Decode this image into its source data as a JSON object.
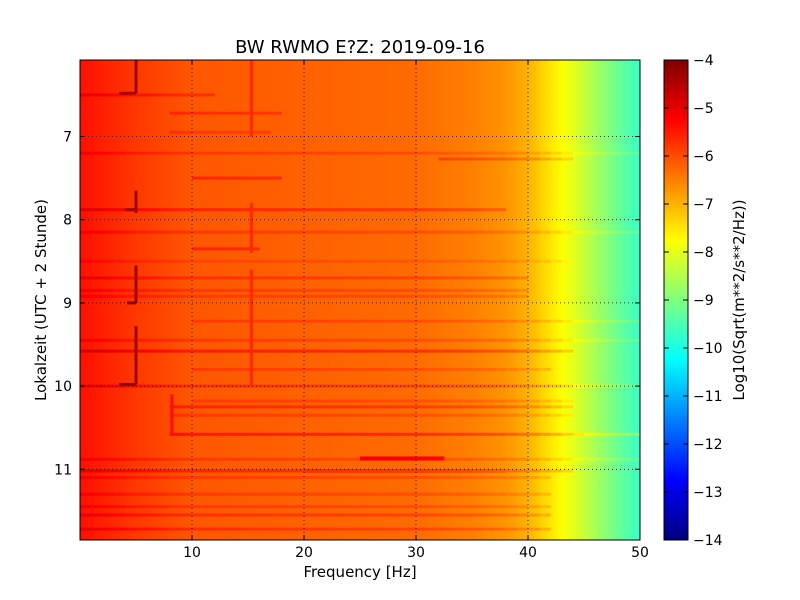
{
  "chart_data": {
    "type": "heatmap",
    "title": "BW RWMO E?Z: 2019-09-16",
    "xlabel": "Frequency [Hz]",
    "ylabel": "Lokalzeit (UTC + 2 Stunde)",
    "xlim": [
      0,
      50
    ],
    "ylim": [
      11.85,
      6.08
    ],
    "x_ticks": [
      10,
      20,
      30,
      40,
      50
    ],
    "y_ticks": [
      7,
      8,
      9,
      10,
      11
    ],
    "x_tick_labels": [
      "10",
      "20",
      "30",
      "40",
      "50"
    ],
    "y_tick_labels": [
      "7",
      "8",
      "9",
      "10",
      "11"
    ],
    "grid": true,
    "colormap": "jet",
    "colorbar": {
      "label": "Log10(Sqrt(m**2/s**2/Hz))",
      "vmin": -14,
      "vmax": -4,
      "ticks": [
        -4,
        -5,
        -6,
        -7,
        -8,
        -9,
        -10,
        -11,
        -12,
        -13,
        -14
      ],
      "tick_labels": [
        "−4",
        "−5",
        "−6",
        "−7",
        "−8",
        "−9",
        "−10",
        "−11",
        "−12",
        "−13",
        "−14"
      ]
    },
    "profile": {
      "frequency_hz": [
        0,
        5,
        10,
        20,
        30,
        35,
        38,
        40,
        42,
        44,
        46,
        48,
        50
      ],
      "level": [
        -5.4,
        -5.8,
        -6.1,
        -6.2,
        -6.3,
        -6.5,
        -6.7,
        -7.0,
        -7.5,
        -8.0,
        -8.6,
        -9.2,
        -9.7
      ]
    },
    "features": {
      "horizontal_lines": [
        {
          "time": 6.5,
          "f_start": 0,
          "f_end": 12,
          "delta": 0.4
        },
        {
          "time": 6.72,
          "f_start": 8,
          "f_end": 18,
          "delta": 0.4
        },
        {
          "time": 6.95,
          "f_start": 8,
          "f_end": 17,
          "delta": 0.3
        },
        {
          "time": 7.2,
          "f_start": 0,
          "f_end": 50,
          "delta": 0.3
        },
        {
          "time": 7.27,
          "f_start": 32,
          "f_end": 44,
          "delta": 0.5
        },
        {
          "time": 7.5,
          "f_start": 10,
          "f_end": 18,
          "delta": 0.5
        },
        {
          "time": 7.88,
          "f_start": 0,
          "f_end": 38,
          "delta": 0.5
        },
        {
          "time": 8.15,
          "f_start": 0,
          "f_end": 50,
          "delta": 0.3
        },
        {
          "time": 8.35,
          "f_start": 10,
          "f_end": 16,
          "delta": 0.5
        },
        {
          "time": 8.5,
          "f_start": 0,
          "f_end": 44,
          "delta": 0.2
        },
        {
          "time": 8.7,
          "f_start": 0,
          "f_end": 40,
          "delta": 0.4
        },
        {
          "time": 8.85,
          "f_start": 0,
          "f_end": 40,
          "delta": 0.3
        },
        {
          "time": 8.92,
          "f_start": 0,
          "f_end": 40,
          "delta": 0.3
        },
        {
          "time": 9.22,
          "f_start": 10,
          "f_end": 50,
          "delta": 0.3
        },
        {
          "time": 9.45,
          "f_start": 0,
          "f_end": 50,
          "delta": 0.3
        },
        {
          "time": 9.58,
          "f_start": 0,
          "f_end": 44,
          "delta": 0.6
        },
        {
          "time": 9.8,
          "f_start": 10,
          "f_end": 42,
          "delta": 0.3
        },
        {
          "time": 10.0,
          "f_start": 0,
          "f_end": 50,
          "delta": 0.4
        },
        {
          "time": 10.18,
          "f_start": 10,
          "f_end": 44,
          "delta": 0.3
        },
        {
          "time": 10.25,
          "f_start": 8,
          "f_end": 44,
          "delta": 0.5
        },
        {
          "time": 10.35,
          "f_start": 8,
          "f_end": 44,
          "delta": 0.3
        },
        {
          "time": 10.58,
          "f_start": 8,
          "f_end": 50,
          "delta": 0.6
        },
        {
          "time": 10.88,
          "f_start": 0,
          "f_end": 50,
          "delta": 0.3
        },
        {
          "time": 11.02,
          "f_start": 0,
          "f_end": 44,
          "delta": 0.5
        },
        {
          "time": 11.1,
          "f_start": 0,
          "f_end": 42,
          "delta": 0.3
        },
        {
          "time": 11.3,
          "f_start": 0,
          "f_end": 42,
          "delta": 0.3
        },
        {
          "time": 11.45,
          "f_start": 0,
          "f_end": 42,
          "delta": 0.3
        },
        {
          "time": 11.55,
          "f_start": 0,
          "f_end": 42,
          "delta": 0.4
        },
        {
          "time": 11.72,
          "f_start": 0,
          "f_end": 42,
          "delta": 0.4
        }
      ],
      "dark_segments": [
        {
          "time": 10.87,
          "f_start": 25,
          "f_end": 32.5,
          "delta": 1.1
        },
        {
          "time": 11.02,
          "f_start": 20,
          "f_end": 38,
          "delta": 0.5
        }
      ],
      "vertical_lines": [
        {
          "freq": 5.0,
          "t_start": 6.08,
          "t_end": 6.48,
          "delta": 1.5
        },
        {
          "freq": 5.0,
          "t_start": 7.65,
          "t_end": 7.92,
          "delta": 1.5
        },
        {
          "freq": 5.0,
          "t_start": 8.55,
          "t_end": 9.0,
          "delta": 1.5
        },
        {
          "freq": 5.0,
          "t_start": 9.28,
          "t_end": 9.98,
          "delta": 1.5
        },
        {
          "freq": 15.3,
          "t_start": 6.08,
          "t_end": 7.0,
          "delta": 0.5
        },
        {
          "freq": 15.3,
          "t_start": 7.8,
          "t_end": 8.4,
          "delta": 0.5
        },
        {
          "freq": 15.3,
          "t_start": 8.6,
          "t_end": 10.0,
          "delta": 0.5
        },
        {
          "freq": 8.2,
          "t_start": 10.1,
          "t_end": 10.6,
          "delta": 0.6
        }
      ],
      "brackets": [
        {
          "freq": 5.0,
          "time": 6.48,
          "f_start": 3.5,
          "f_end": 5.0,
          "delta": 1.5
        },
        {
          "freq": 5.0,
          "time": 7.88,
          "f_start": 4.0,
          "f_end": 5.0,
          "delta": 1.5
        },
        {
          "freq": 5.0,
          "time": 9.0,
          "f_start": 4.2,
          "f_end": 5.0,
          "delta": 1.5
        },
        {
          "freq": 5.0,
          "time": 9.98,
          "f_start": 3.5,
          "f_end": 5.0,
          "delta": 1.5
        }
      ]
    }
  }
}
